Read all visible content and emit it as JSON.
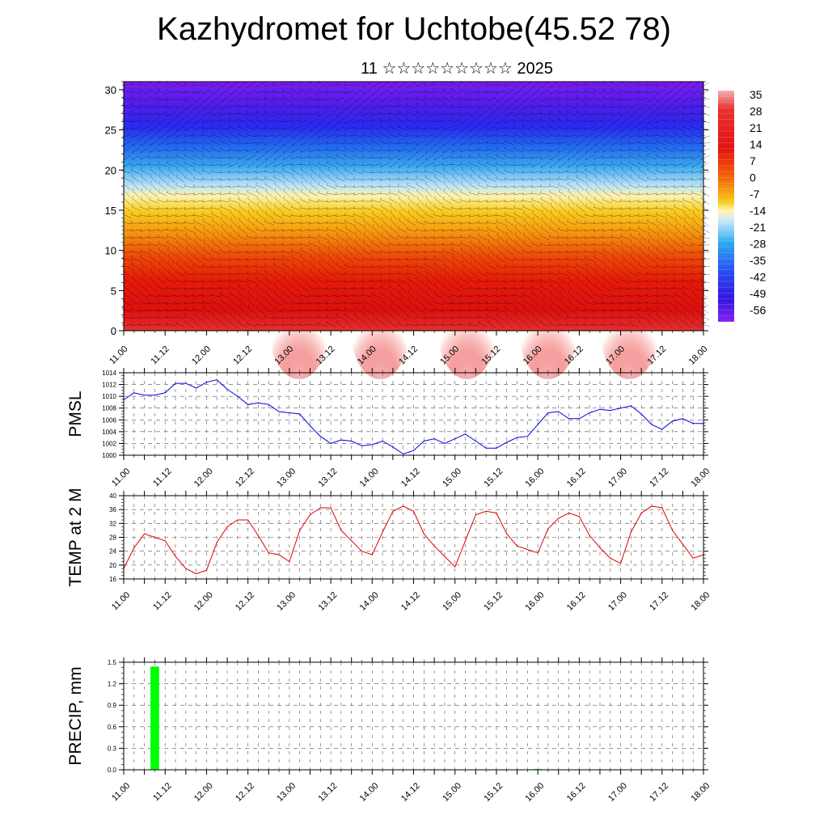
{
  "title": "Kazhydromet for Uchtobe(45.52 78)",
  "subtitle": "11 ☆☆☆☆☆☆☆☆☆ 2025",
  "time_ticks": [
    "11.00",
    "11.12",
    "12.00",
    "12.12",
    "13.00",
    "13.12",
    "14.00",
    "14.12",
    "15.00",
    "15.12",
    "16.00",
    "16.12",
    "17.00",
    "17.12",
    "18.00"
  ],
  "chart_data": [
    {
      "type": "heatmap",
      "name": "upper-air-cross-section",
      "yticks": [
        0,
        5,
        10,
        15,
        20,
        25,
        30
      ],
      "ylim": [
        0,
        31
      ],
      "colorbar_labels": [
        "35",
        "28",
        "21",
        "14",
        "7",
        "0",
        "-7",
        "-14",
        "-21",
        "-28",
        "-35",
        "-42",
        "-49",
        "-56"
      ],
      "overlay": "wind barbs"
    },
    {
      "type": "line",
      "ylabel": "PMSL",
      "ylim": [
        1000,
        1014
      ],
      "yticks": [
        "1000",
        "1002",
        "1004",
        "1006",
        "1008",
        "1010",
        "1012",
        "1014"
      ],
      "color": "#0000e0",
      "values": [
        1009.4,
        1010.6,
        1010.2,
        1010.2,
        1010.6,
        1012.2,
        1012.2,
        1011.4,
        1012.4,
        1012.8,
        1011.2,
        1010.0,
        1008.6,
        1008.9,
        1008.6,
        1007.4,
        1007.2,
        1007.0,
        1005.0,
        1003.2,
        1002.0,
        1002.6,
        1002.4,
        1001.6,
        1001.8,
        1002.4,
        1001.4,
        1000.2,
        1000.8,
        1002.4,
        1002.8,
        1002.0,
        1002.8,
        1003.6,
        1002.4,
        1001.2,
        1001.2,
        1002.2,
        1003.0,
        1003.2,
        1005.2,
        1007.2,
        1007.4,
        1006.2,
        1006.2,
        1007.2,
        1007.8,
        1007.6,
        1008.0,
        1008.4,
        1007.0,
        1005.2,
        1004.4,
        1005.8,
        1006.2,
        1005.4,
        1005.4
      ]
    },
    {
      "type": "line",
      "ylabel": "TEMP at 2 M",
      "ylim": [
        16,
        40
      ],
      "yticks": [
        "16",
        "20",
        "24",
        "28",
        "32",
        "36",
        "40"
      ],
      "color": "#e00000",
      "values": [
        19,
        25,
        29,
        28,
        27,
        22.5,
        19,
        17.5,
        18.5,
        26.5,
        31,
        33,
        33,
        28.5,
        23.5,
        23,
        21,
        30,
        34.5,
        36.5,
        36.5,
        30,
        27,
        24,
        23,
        29.5,
        35.5,
        37,
        35.5,
        29,
        25.5,
        22.5,
        19.5,
        27,
        34.5,
        35.5,
        35,
        29,
        25.5,
        24.5,
        23.5,
        30.5,
        33.5,
        35,
        34,
        28.5,
        25,
        22,
        20.5,
        29.5,
        35,
        37,
        36.5,
        30,
        26,
        22,
        23
      ]
    },
    {
      "type": "bar",
      "ylabel": "PRECIP, mm",
      "ylim": [
        0,
        1.5
      ],
      "yticks": [
        "0.0",
        "0.3",
        "0.6",
        "0.9",
        "1.2",
        "1.5"
      ],
      "color": "#00ff00",
      "bars": [
        {
          "x": 3,
          "value": 1.44
        },
        {
          "x": 40,
          "value": 0.01
        }
      ]
    }
  ]
}
